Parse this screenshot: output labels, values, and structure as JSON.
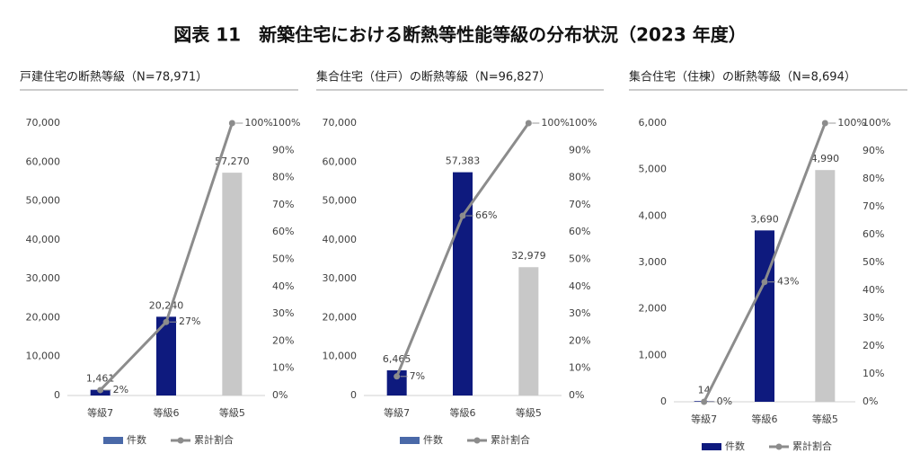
{
  "title": "図表 11　新築住宅における断熱等性能等級の分布状況（2023 年度）",
  "chart_data": [
    {
      "type": "bar",
      "title": "戸建住宅の断熱等級（N=78,971）",
      "categories": [
        "等級7",
        "等級6",
        "等級5"
      ],
      "series": [
        {
          "name": "件数",
          "color": "#4a69a8",
          "colors": [
            "#0e1a7e",
            "#0e1a7e",
            "#c8c8c8"
          ],
          "values": [
            1461,
            20240,
            57270
          ],
          "value_labels": [
            "1,461",
            "20,240",
            "57,270"
          ]
        },
        {
          "name": "累計割合",
          "type": "line",
          "axis": "y2",
          "color": "#8c8c8c",
          "values": [
            2,
            27,
            100
          ],
          "value_labels": [
            "2%",
            "27%",
            "100%"
          ]
        }
      ],
      "ylim": [
        0,
        70000
      ],
      "yticks": [
        0,
        {
          "value": 10000,
          "label": "10,000"
        },
        {
          "value": 20000,
          "label": "20,000"
        },
        {
          "value": 30000,
          "label": "30,000"
        },
        {
          "value": 40000,
          "label": "40,000"
        },
        {
          "value": 50000,
          "label": "50,000"
        },
        {
          "value": 60000,
          "label": "60,000"
        },
        {
          "value": 70000,
          "label": "70,000"
        }
      ],
      "y2lim": [
        0,
        100
      ],
      "y2ticks": [
        {
          "value": 0,
          "label": "0%"
        },
        {
          "value": 10,
          "label": "10%"
        },
        {
          "value": 20,
          "label": "20%"
        },
        {
          "value": 30,
          "label": "30%"
        },
        {
          "value": 40,
          "label": "40%"
        },
        {
          "value": 50,
          "label": "50%"
        },
        {
          "value": 60,
          "label": "60%"
        },
        {
          "value": 70,
          "label": "70%"
        },
        {
          "value": 80,
          "label": "80%"
        },
        {
          "value": 90,
          "label": "90%"
        },
        {
          "value": 100,
          "label": "100%"
        }
      ],
      "legend": "bottom"
    },
    {
      "type": "bar",
      "title": "集合住宅（住戸）の断熱等級（N=96,827）",
      "categories": [
        "等級7",
        "等級6",
        "等級5"
      ],
      "series": [
        {
          "name": "件数",
          "color": "#4a69a8",
          "colors": [
            "#0e1a7e",
            "#0e1a7e",
            "#c8c8c8"
          ],
          "values": [
            6465,
            57383,
            32979
          ],
          "value_labels": [
            "6,465",
            "57,383",
            "32,979"
          ]
        },
        {
          "name": "累計割合",
          "type": "line",
          "axis": "y2",
          "color": "#8c8c8c",
          "values": [
            7,
            66,
            100
          ],
          "value_labels": [
            "7%",
            "66%",
            "100%"
          ]
        }
      ],
      "ylim": [
        0,
        70000
      ],
      "yticks": [
        0,
        {
          "value": 10000,
          "label": "10,000"
        },
        {
          "value": 20000,
          "label": "20,000"
        },
        {
          "value": 30000,
          "label": "30,000"
        },
        {
          "value": 40000,
          "label": "40,000"
        },
        {
          "value": 50000,
          "label": "50,000"
        },
        {
          "value": 60000,
          "label": "60,000"
        },
        {
          "value": 70000,
          "label": "70,000"
        }
      ],
      "y2lim": [
        0,
        100
      ],
      "y2ticks": [
        {
          "value": 0,
          "label": "0%"
        },
        {
          "value": 10,
          "label": "10%"
        },
        {
          "value": 20,
          "label": "20%"
        },
        {
          "value": 30,
          "label": "30%"
        },
        {
          "value": 40,
          "label": "40%"
        },
        {
          "value": 50,
          "label": "50%"
        },
        {
          "value": 60,
          "label": "60%"
        },
        {
          "value": 70,
          "label": "70%"
        },
        {
          "value": 80,
          "label": "80%"
        },
        {
          "value": 90,
          "label": "90%"
        },
        {
          "value": 100,
          "label": "100%"
        }
      ],
      "legend": "bottom"
    },
    {
      "type": "bar",
      "title": "集合住宅（住棟）の断熱等級（N=8,694）",
      "categories": [
        "等級7",
        "等級6",
        "等級5"
      ],
      "series": [
        {
          "name": "件数",
          "color": "#0e1a7e",
          "colors": [
            "#0e1a7e",
            "#0e1a7e",
            "#c8c8c8"
          ],
          "values": [
            14,
            3690,
            4990
          ],
          "value_labels": [
            "14",
            "3,690",
            "4,990"
          ]
        },
        {
          "name": "累計割合",
          "type": "line",
          "axis": "y2",
          "color": "#8c8c8c",
          "values": [
            0,
            43,
            100
          ],
          "value_labels": [
            "0%",
            "43%",
            "100%"
          ]
        }
      ],
      "ylim": [
        0,
        6000
      ],
      "yticks": [
        0,
        {
          "value": 1000,
          "label": "1,000"
        },
        {
          "value": 2000,
          "label": "2,000"
        },
        {
          "value": 3000,
          "label": "3,000"
        },
        {
          "value": 4000,
          "label": "4,000"
        },
        {
          "value": 5000,
          "label": "5,000"
        },
        {
          "value": 6000,
          "label": "6,000"
        }
      ],
      "y2lim": [
        0,
        100
      ],
      "y2ticks": [
        {
          "value": 0,
          "label": "0%"
        },
        {
          "value": 10,
          "label": "10%"
        },
        {
          "value": 20,
          "label": "20%"
        },
        {
          "value": 30,
          "label": "30%"
        },
        {
          "value": 40,
          "label": "40%"
        },
        {
          "value": 50,
          "label": "50%"
        },
        {
          "value": 60,
          "label": "60%"
        },
        {
          "value": 70,
          "label": "70%"
        },
        {
          "value": 80,
          "label": "80%"
        },
        {
          "value": 90,
          "label": "90%"
        },
        {
          "value": 100,
          "label": "100%"
        }
      ],
      "legend": "bottom"
    }
  ]
}
